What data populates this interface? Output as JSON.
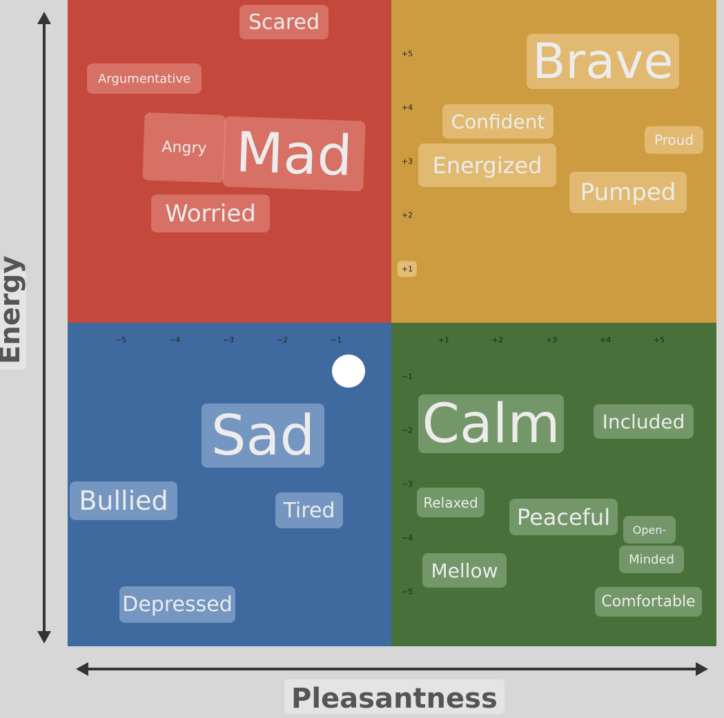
{
  "axes": {
    "y_label": "Energy",
    "x_label": "Pleasantness"
  },
  "colors": {
    "mad": "#c4493c",
    "brave": "#cd9b40",
    "sad": "#3e6a9f",
    "calm": "#47703a",
    "background": "#d7d7d7"
  },
  "x_ticks": [
    "−5",
    "−4",
    "−3",
    "−2",
    "−1",
    "+1",
    "+2",
    "+3",
    "+4",
    "+5"
  ],
  "y_ticks": [
    "+5",
    "+4",
    "+3",
    "+2",
    "+1",
    "−1",
    "−2",
    "−3",
    "−4",
    "−5"
  ],
  "words": [
    {
      "text": "Scared",
      "quadrant": "red"
    },
    {
      "text": "Argumentative",
      "quadrant": "red"
    },
    {
      "text": "Angry",
      "quadrant": "red"
    },
    {
      "text": "Mad",
      "quadrant": "red"
    },
    {
      "text": "Worried",
      "quadrant": "red"
    },
    {
      "text": "Brave",
      "quadrant": "gold"
    },
    {
      "text": "Confident",
      "quadrant": "gold"
    },
    {
      "text": "Proud",
      "quadrant": "gold"
    },
    {
      "text": "Energized",
      "quadrant": "gold"
    },
    {
      "text": "Pumped",
      "quadrant": "gold"
    },
    {
      "text": "Sad",
      "quadrant": "blue"
    },
    {
      "text": "Bullied",
      "quadrant": "blue"
    },
    {
      "text": "Tired",
      "quadrant": "blue"
    },
    {
      "text": "Depressed",
      "quadrant": "blue"
    },
    {
      "text": "Calm",
      "quadrant": "green"
    },
    {
      "text": "Included",
      "quadrant": "green"
    },
    {
      "text": "Relaxed",
      "quadrant": "green"
    },
    {
      "text": "Peaceful",
      "quadrant": "green"
    },
    {
      "text": "Open-",
      "quadrant": "green"
    },
    {
      "text": "Minded",
      "quadrant": "green"
    },
    {
      "text": "Mellow",
      "quadrant": "green"
    },
    {
      "text": "Comfortable",
      "quadrant": "green"
    }
  ],
  "selected_point": {
    "pleasantness": -0.8,
    "energy": -0.9
  }
}
